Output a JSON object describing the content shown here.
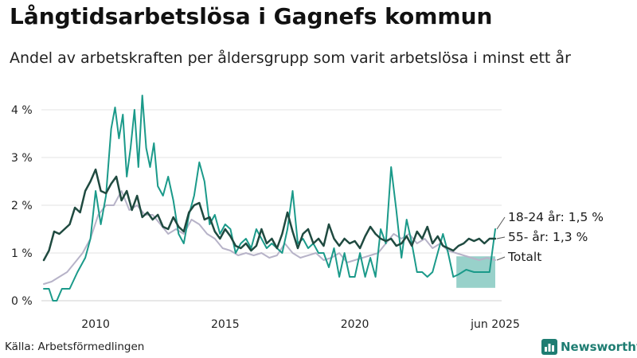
{
  "title": "Långtidsarbetslösa i Gagnefs kommun",
  "subtitle": "Andel av arbetskraften per åldersgrupp som varit arbetslösa i minst ett år",
  "source": "Källa: Arbetsförmedlingen",
  "brand": {
    "name": "Newsworthy",
    "icon": "bar-chart-icon",
    "color": "#1e7d72"
  },
  "chart_data": {
    "type": "line",
    "x_unit": "year",
    "xlim": [
      2008.0,
      2025.42
    ],
    "ylim": [
      0,
      4.5
    ],
    "y_ticks": [
      {
        "value": 0,
        "label": "0 %"
      },
      {
        "value": 1,
        "label": "1 %"
      },
      {
        "value": 2,
        "label": "2 %"
      },
      {
        "value": 3,
        "label": "3 %"
      },
      {
        "value": 4,
        "label": "4 %"
      }
    ],
    "x_ticks": [
      {
        "value": 2010,
        "label": "2010"
      },
      {
        "value": 2015,
        "label": "2015"
      },
      {
        "value": 2020,
        "label": "2020"
      },
      {
        "value": 2025.42,
        "label": "jun 2025"
      }
    ],
    "grid": true,
    "legend": "line-end labels",
    "series": [
      {
        "name": "18-24 år",
        "end_label": "18-24 år: 1,5 %",
        "color": "#1b9a8a",
        "width": 2,
        "x": [
          2008.0,
          2008.2,
          2008.35,
          2008.5,
          2008.7,
          2009.0,
          2009.3,
          2009.6,
          2009.8,
          2010.0,
          2010.2,
          2010.4,
          2010.6,
          2010.75,
          2010.9,
          2011.05,
          2011.2,
          2011.35,
          2011.5,
          2011.65,
          2011.8,
          2011.95,
          2012.1,
          2012.25,
          2012.4,
          2012.6,
          2012.8,
          2013.0,
          2013.2,
          2013.4,
          2013.6,
          2013.8,
          2014.0,
          2014.2,
          2014.4,
          2014.6,
          2014.8,
          2015.0,
          2015.2,
          2015.4,
          2015.6,
          2015.8,
          2016.0,
          2016.2,
          2016.4,
          2016.6,
          2016.8,
          2017.0,
          2017.2,
          2017.4,
          2017.6,
          2017.8,
          2018.0,
          2018.2,
          2018.4,
          2018.6,
          2018.8,
          2019.0,
          2019.2,
          2019.4,
          2019.6,
          2019.8,
          2020.0,
          2020.2,
          2020.4,
          2020.6,
          2020.8,
          2021.0,
          2021.2,
          2021.4,
          2021.6,
          2021.8,
          2022.0,
          2022.2,
          2022.4,
          2022.6,
          2022.8,
          2023.0,
          2023.2,
          2023.4,
          2023.6,
          2023.8,
          2024.0,
          2024.3,
          2024.6,
          2024.9,
          2025.2,
          2025.42
        ],
        "y": [
          0.25,
          0.25,
          0.0,
          0.0,
          0.25,
          0.25,
          0.6,
          0.9,
          1.3,
          2.3,
          1.6,
          2.2,
          3.6,
          4.05,
          3.4,
          3.9,
          2.6,
          3.2,
          4.0,
          2.8,
          4.3,
          3.2,
          2.8,
          3.3,
          2.4,
          2.2,
          2.6,
          2.1,
          1.4,
          1.2,
          1.8,
          2.2,
          2.9,
          2.5,
          1.6,
          1.8,
          1.4,
          1.6,
          1.5,
          1.0,
          1.2,
          1.3,
          1.1,
          1.5,
          1.3,
          1.1,
          1.2,
          1.1,
          1.0,
          1.5,
          2.3,
          1.2,
          1.3,
          1.1,
          1.2,
          1.0,
          1.0,
          0.7,
          1.1,
          0.5,
          1.0,
          0.5,
          0.5,
          1.0,
          0.5,
          0.9,
          0.5,
          1.5,
          1.2,
          2.8,
          1.9,
          0.9,
          1.7,
          1.2,
          0.6,
          0.6,
          0.5,
          0.6,
          1.0,
          1.4,
          1.0,
          0.5,
          0.55,
          0.65,
          0.6,
          0.6,
          0.6,
          1.5
        ]
      },
      {
        "name": "55- år",
        "end_label": "55- år: 1,3 %",
        "color": "#1f4a40",
        "width": 2.5,
        "x": [
          2008.0,
          2008.2,
          2008.4,
          2008.6,
          2008.8,
          2009.0,
          2009.2,
          2009.4,
          2009.6,
          2009.8,
          2010.0,
          2010.2,
          2010.4,
          2010.6,
          2010.8,
          2011.0,
          2011.2,
          2011.4,
          2011.6,
          2011.8,
          2012.0,
          2012.2,
          2012.4,
          2012.6,
          2012.8,
          2013.0,
          2013.2,
          2013.4,
          2013.6,
          2013.8,
          2014.0,
          2014.2,
          2014.4,
          2014.6,
          2014.8,
          2015.0,
          2015.2,
          2015.4,
          2015.6,
          2015.8,
          2016.0,
          2016.2,
          2016.4,
          2016.6,
          2016.8,
          2017.0,
          2017.2,
          2017.4,
          2017.6,
          2017.8,
          2018.0,
          2018.2,
          2018.4,
          2018.6,
          2018.8,
          2019.0,
          2019.2,
          2019.4,
          2019.6,
          2019.8,
          2020.0,
          2020.2,
          2020.4,
          2020.6,
          2020.8,
          2021.0,
          2021.2,
          2021.4,
          2021.6,
          2021.8,
          2022.0,
          2022.2,
          2022.4,
          2022.6,
          2022.8,
          2023.0,
          2023.2,
          2023.4,
          2023.6,
          2023.8,
          2024.0,
          2024.2,
          2024.4,
          2024.6,
          2024.8,
          2025.0,
          2025.2,
          2025.42
        ],
        "y": [
          0.85,
          1.05,
          1.45,
          1.4,
          1.5,
          1.6,
          1.95,
          1.85,
          2.3,
          2.5,
          2.75,
          2.3,
          2.25,
          2.45,
          2.6,
          2.1,
          2.3,
          1.9,
          2.2,
          1.75,
          1.85,
          1.7,
          1.8,
          1.55,
          1.5,
          1.75,
          1.55,
          1.45,
          1.85,
          2.0,
          2.05,
          1.7,
          1.75,
          1.45,
          1.3,
          1.5,
          1.35,
          1.15,
          1.1,
          1.2,
          1.05,
          1.15,
          1.5,
          1.2,
          1.3,
          1.1,
          1.4,
          1.85,
          1.45,
          1.1,
          1.4,
          1.5,
          1.2,
          1.3,
          1.15,
          1.6,
          1.3,
          1.15,
          1.3,
          1.2,
          1.25,
          1.1,
          1.35,
          1.55,
          1.4,
          1.3,
          1.25,
          1.3,
          1.15,
          1.2,
          1.35,
          1.15,
          1.45,
          1.3,
          1.55,
          1.2,
          1.35,
          1.15,
          1.1,
          1.05,
          1.15,
          1.2,
          1.3,
          1.25,
          1.3,
          1.2,
          1.3,
          1.3
        ]
      },
      {
        "name": "Totalt",
        "end_label": "Totalt",
        "color": "#b7b3c8",
        "width": 2,
        "x": [
          2008.0,
          2008.3,
          2008.6,
          2008.9,
          2009.2,
          2009.5,
          2009.8,
          2010.1,
          2010.4,
          2010.7,
          2011.0,
          2011.3,
          2011.6,
          2011.9,
          2012.2,
          2012.5,
          2012.8,
          2013.1,
          2013.4,
          2013.7,
          2014.0,
          2014.3,
          2014.6,
          2014.9,
          2015.2,
          2015.5,
          2015.8,
          2016.1,
          2016.4,
          2016.7,
          2017.0,
          2017.3,
          2017.6,
          2017.9,
          2018.2,
          2018.5,
          2018.8,
          2019.1,
          2019.4,
          2019.7,
          2020.0,
          2020.3,
          2020.6,
          2020.9,
          2021.2,
          2021.5,
          2021.8,
          2022.1,
          2022.4,
          2022.7,
          2023.0,
          2023.3,
          2023.6,
          2023.9,
          2024.2,
          2024.5,
          2024.8,
          2025.1,
          2025.42
        ],
        "y": [
          0.35,
          0.4,
          0.5,
          0.6,
          0.8,
          1.0,
          1.3,
          1.8,
          2.0,
          2.0,
          2.3,
          1.9,
          2.0,
          1.8,
          1.8,
          1.6,
          1.4,
          1.5,
          1.4,
          1.7,
          1.6,
          1.4,
          1.3,
          1.1,
          1.05,
          0.95,
          1.0,
          0.95,
          1.0,
          0.9,
          0.95,
          1.2,
          1.0,
          0.9,
          0.95,
          1.0,
          0.85,
          0.9,
          1.0,
          0.8,
          0.85,
          0.9,
          0.95,
          1.0,
          1.2,
          1.4,
          1.3,
          1.4,
          1.2,
          1.3,
          1.1,
          1.2,
          1.05,
          1.0,
          0.95,
          0.9,
          0.85,
          0.9,
          0.85
        ]
      }
    ],
    "band": {
      "description_series": "18-24 år",
      "color": "#1b9a8a",
      "x_start": 2023.92,
      "x_end": 2025.42,
      "y_low": 0.27,
      "y_high": 0.93
    }
  }
}
